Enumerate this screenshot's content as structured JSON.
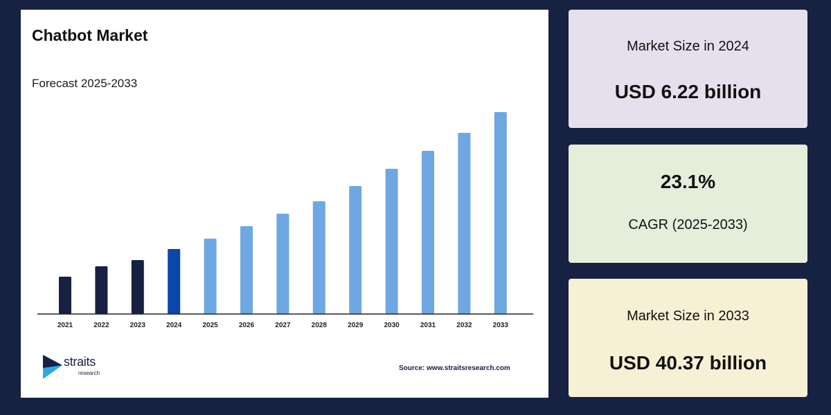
{
  "title": "Chatbot Market",
  "subtitle": "Forecast 2025-2033",
  "source": "Source: www.straitsresearch.com",
  "logo": {
    "name": "straits",
    "sub": "research"
  },
  "stats": [
    {
      "label": "Market Size in 2024",
      "value": "USD 6.22 billion"
    },
    {
      "value": "23.1%",
      "label": "CAGR (2025-2033)"
    },
    {
      "label": "Market Size in 2033",
      "value": "USD 40.37 billion"
    }
  ],
  "colors": {
    "historical": "#172141",
    "base_year": "#0a47a9",
    "forecast": "#6fa7e3"
  },
  "chart_data": {
    "type": "bar",
    "categories": [
      "2021",
      "2022",
      "2023",
      "2024",
      "2025",
      "2026",
      "2027",
      "2028",
      "2029",
      "2030",
      "2031",
      "2032",
      "2033"
    ],
    "values": [
      5.4,
      6.9,
      7.8,
      9.4,
      10.9,
      12.7,
      14.5,
      16.3,
      18.5,
      21.0,
      23.6,
      26.2,
      29.2
    ],
    "ylim": [
      0,
      30
    ],
    "grid": false,
    "legend": "none"
  }
}
